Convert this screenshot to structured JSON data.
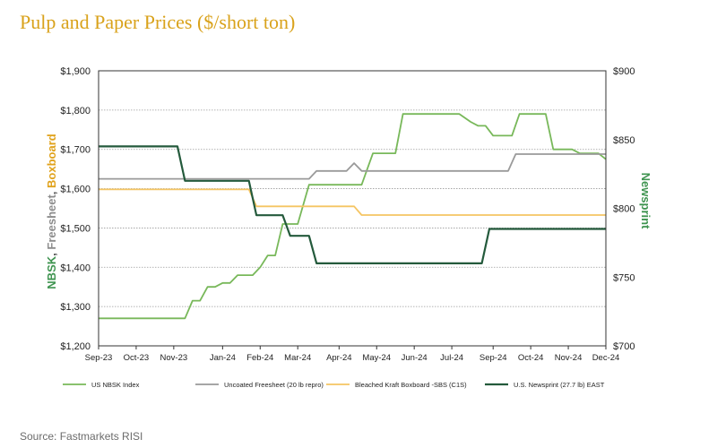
{
  "header": {
    "title": "Pulp and Paper Prices ($/short ton)"
  },
  "footer": {
    "source": "Source:  Fastmarkets RISI"
  },
  "colors": {
    "nbsk": "#78b85a",
    "freesheet": "#9a9a9a",
    "boxboard": "#f5c563",
    "newsprint": "#245a3c",
    "title": "#d9a21b",
    "left_label_nbsk": "#3f9450",
    "left_label_freesheet": "#8c8c8c",
    "left_label_boxboard": "#e0a21b",
    "right_label": "#3f9450"
  },
  "chart_data": {
    "type": "line",
    "title": "Pulp and Paper Prices ($/short ton)",
    "xlabel": "",
    "ylabel_left_parts": [
      "NBSK",
      ", ",
      "Freesheet",
      ", ",
      "Boxboard"
    ],
    "ylabel_right": "Newsprint",
    "x_tick_labels": [
      "Sep-23",
      "Oct-23",
      "Nov-23",
      "Jan-24",
      "Feb-24",
      "Mar-24",
      "Apr-24",
      "May-24",
      "Jun-24",
      "Jul-24",
      "Sep-24",
      "Oct-24",
      "Nov-24",
      "Dec-24"
    ],
    "x_tick_positions": [
      0,
      1,
      2,
      3.3,
      4.3,
      5.3,
      6.4,
      7.4,
      8.4,
      9.4,
      10.5,
      11.5,
      12.5,
      13.5
    ],
    "x_range": [
      0,
      13.5
    ],
    "left_axis": {
      "ylim": [
        1200,
        1900
      ],
      "ticks": [
        "$1,200",
        "$1,300",
        "$1,400",
        "$1,500",
        "$1,600",
        "$1,700",
        "$1,800",
        "$1,900"
      ],
      "values": [
        1200,
        1300,
        1400,
        1500,
        1600,
        1700,
        1800,
        1900
      ]
    },
    "right_axis": {
      "ylim": [
        700,
        900
      ],
      "ticks": [
        "$700",
        "$750",
        "$800",
        "$850",
        "$900"
      ],
      "values": [
        700,
        750,
        800,
        850,
        900
      ]
    },
    "series": [
      {
        "name": "US NBSK Index",
        "axis": "left",
        "color_key": "nbsk",
        "points": [
          [
            0,
            1270
          ],
          [
            2.3,
            1270
          ],
          [
            2.5,
            1315
          ],
          [
            2.7,
            1315
          ],
          [
            2.9,
            1350
          ],
          [
            3.1,
            1350
          ],
          [
            3.3,
            1360
          ],
          [
            3.5,
            1360
          ],
          [
            3.7,
            1380
          ],
          [
            4.1,
            1380
          ],
          [
            4.3,
            1400
          ],
          [
            4.5,
            1430
          ],
          [
            4.7,
            1430
          ],
          [
            4.9,
            1510
          ],
          [
            5.3,
            1510
          ],
          [
            5.6,
            1610
          ],
          [
            7.0,
            1610
          ],
          [
            7.3,
            1690
          ],
          [
            7.9,
            1690
          ],
          [
            8.1,
            1790
          ],
          [
            9.6,
            1790
          ],
          [
            9.9,
            1770
          ],
          [
            10.1,
            1760
          ],
          [
            10.3,
            1760
          ],
          [
            10.5,
            1735
          ],
          [
            11.0,
            1735
          ],
          [
            11.2,
            1790
          ],
          [
            11.9,
            1790
          ],
          [
            12.1,
            1700
          ],
          [
            12.6,
            1700
          ],
          [
            12.8,
            1690
          ],
          [
            13.3,
            1690
          ],
          [
            13.5,
            1675
          ]
        ]
      },
      {
        "name": "Uncoated Freesheet (20 lb repro)",
        "axis": "left",
        "color_key": "freesheet",
        "points": [
          [
            0,
            1625
          ],
          [
            5.6,
            1625
          ],
          [
            5.8,
            1645
          ],
          [
            6.6,
            1645
          ],
          [
            6.8,
            1665
          ],
          [
            7.0,
            1645
          ],
          [
            10.9,
            1645
          ],
          [
            11.1,
            1688
          ],
          [
            13.5,
            1688
          ]
        ]
      },
      {
        "name": "Bleached Kraft Boxboard -SBS (C1S)",
        "axis": "left",
        "color_key": "boxboard",
        "points": [
          [
            0,
            1598
          ],
          [
            4.0,
            1598
          ],
          [
            4.2,
            1555
          ],
          [
            6.8,
            1555
          ],
          [
            7.0,
            1533
          ],
          [
            13.5,
            1533
          ]
        ]
      },
      {
        "name": "U.S. Newsprint (27.7 lb) EAST",
        "axis": "right",
        "color_key": "newsprint",
        "points": [
          [
            0,
            845
          ],
          [
            2.1,
            845
          ],
          [
            2.3,
            820
          ],
          [
            4.0,
            820
          ],
          [
            4.2,
            795
          ],
          [
            4.9,
            795
          ],
          [
            5.1,
            780
          ],
          [
            5.6,
            780
          ],
          [
            5.8,
            760
          ],
          [
            10.2,
            760
          ],
          [
            10.4,
            785
          ],
          [
            13.5,
            785
          ]
        ]
      }
    ],
    "legend": {
      "placement": "bottom"
    }
  }
}
